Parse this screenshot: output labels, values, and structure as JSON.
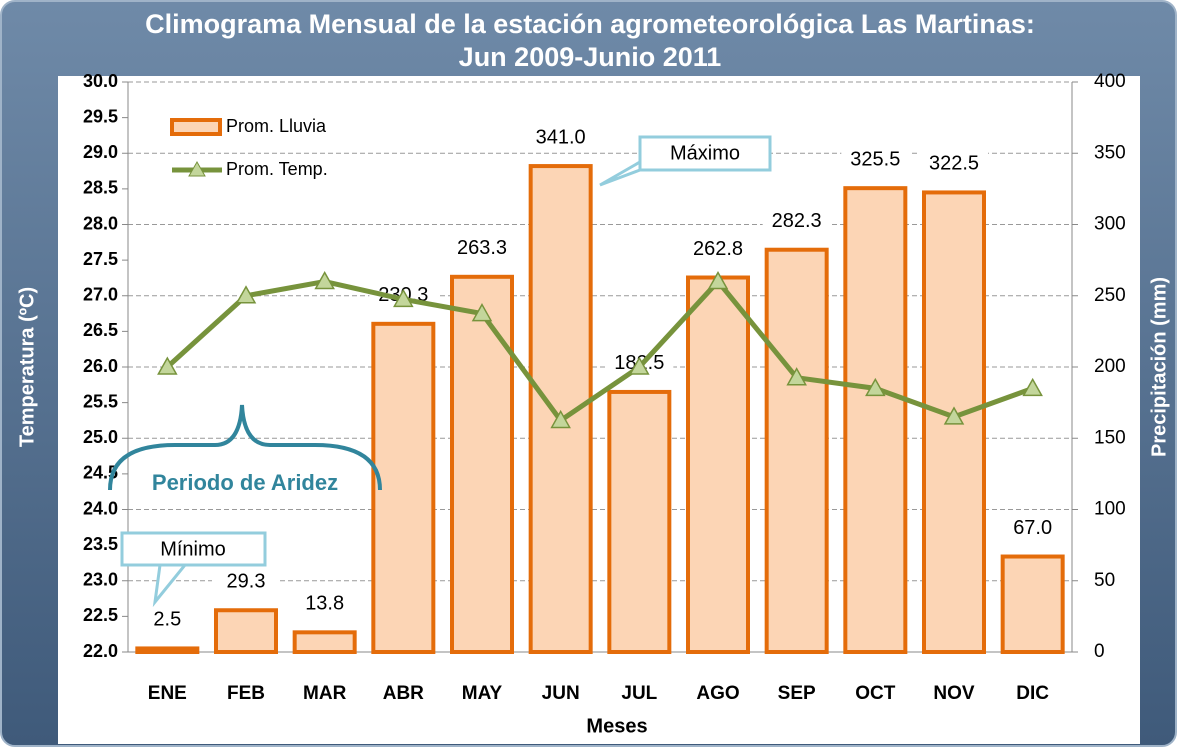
{
  "chart_data": {
    "type": "bar-line",
    "title": "Climograma  Mensual de la estación agrometeorológica Las Martinas: Jun 2009-Junio 2011",
    "xlabel": "Meses",
    "ylabel": "Temperatura (ºC)",
    "y2label": "Precipitación (mm)",
    "categories": [
      "ENE",
      "FEB",
      "MAR",
      "ABR",
      "MAY",
      "JUN",
      "JUL",
      "AGO",
      "SEP",
      "OCT",
      "NOV",
      "DIC"
    ],
    "series": [
      {
        "name": "Prom. Lluvia",
        "type": "bar",
        "axis": "y2",
        "color": "#fcd5b5",
        "edgecolor": "#e46c0a",
        "values": [
          2.5,
          29.3,
          13.8,
          230.3,
          263.3,
          341,
          182.5,
          262.8,
          282.3,
          325.5,
          322.5,
          67
        ],
        "value_labels": [
          "2.5",
          "29.3",
          "13.8",
          "230.3",
          "263.3",
          "341.0",
          "182.5",
          "262.8",
          "282.3",
          "325.5",
          "322.5",
          "67.0"
        ]
      },
      {
        "name": "Prom. Temp.",
        "type": "line",
        "color": "#77933c",
        "marker_color": "#c3d69b",
        "values": [
          26.0,
          27.0,
          27.2,
          26.95,
          26.75,
          25.25,
          26.0,
          27.2,
          25.85,
          25.7,
          25.3,
          25.7
        ]
      }
    ],
    "ylim": [
      22,
      30
    ],
    "yticks": [
      {
        "value": 22,
        "label": "22.0"
      },
      22.5,
      {
        "value": 23,
        "label": "23.0"
      },
      23.5,
      {
        "value": 24,
        "label": "24.0"
      },
      24.5,
      {
        "value": 25,
        "label": "25.0"
      },
      25.5,
      {
        "value": 26,
        "label": "26.0"
      },
      26.5,
      {
        "value": 27,
        "label": "27.0"
      },
      27.5,
      {
        "value": 28,
        "label": "28.0"
      },
      28.5,
      {
        "value": 29,
        "label": "29.0"
      },
      29.5,
      {
        "value": 30,
        "label": "30.0"
      }
    ],
    "y2lim": [
      0,
      400
    ],
    "y2ticks": [
      0,
      50,
      100,
      150,
      200,
      250,
      300,
      350,
      400
    ],
    "grid": true,
    "legend": "upper left",
    "annotations": [
      "Máximo",
      "Mínimo",
      "Periodo de Aridez"
    ]
  }
}
